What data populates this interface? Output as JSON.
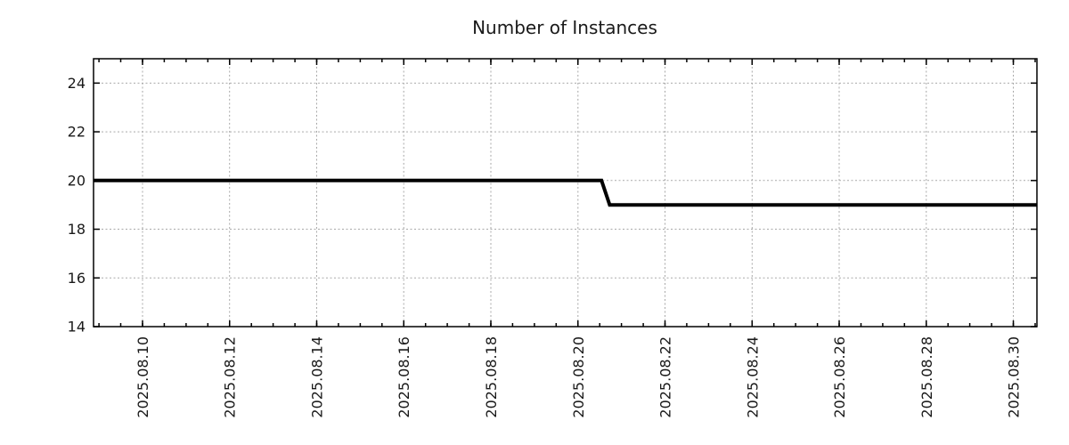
{
  "chart_data": {
    "type": "line",
    "title": "Number of Instances",
    "background_color": "#ffffff",
    "grid": {
      "style": "dotted",
      "color": "#a9a9a9",
      "enabled": true
    },
    "legend": "none",
    "x_axis": {
      "type": "datetime",
      "range": [
        "2025-08-08T21:00:00",
        "2025-08-30T13:00:00"
      ],
      "minor_tick_interval_days": 0.5,
      "tick_label_rotation_deg": 90,
      "major_ticks": [
        {
          "label": "2025.08.10",
          "value": "2025-08-10T00:00:00"
        },
        {
          "label": "2025.08.12",
          "value": "2025-08-12T00:00:00"
        },
        {
          "label": "2025.08.14",
          "value": "2025-08-14T00:00:00"
        },
        {
          "label": "2025.08.16",
          "value": "2025-08-16T00:00:00"
        },
        {
          "label": "2025.08.18",
          "value": "2025-08-18T00:00:00"
        },
        {
          "label": "2025.08.20",
          "value": "2025-08-20T00:00:00"
        },
        {
          "label": "2025.08.22",
          "value": "2025-08-22T00:00:00"
        },
        {
          "label": "2025.08.24",
          "value": "2025-08-24T00:00:00"
        },
        {
          "label": "2025.08.26",
          "value": "2025-08-26T00:00:00"
        },
        {
          "label": "2025.08.28",
          "value": "2025-08-28T00:00:00"
        },
        {
          "label": "2025.08.30",
          "value": "2025-08-30T00:00:00"
        }
      ]
    },
    "y_axis": {
      "range": [
        14,
        25
      ],
      "major_ticks": [
        {
          "label": "14",
          "value": 14
        },
        {
          "label": "16",
          "value": 16
        },
        {
          "label": "18",
          "value": 18
        },
        {
          "label": "20",
          "value": 20
        },
        {
          "label": "22",
          "value": 22
        },
        {
          "label": "24",
          "value": 24
        }
      ]
    },
    "series": [
      {
        "name": "instances",
        "color": "#000000",
        "line_width": 4,
        "points": [
          {
            "x": "2025-08-08T21:00:00",
            "y": 20
          },
          {
            "x": "2025-08-20T13:00:00",
            "y": 20
          },
          {
            "x": "2025-08-20T17:30:00",
            "y": 19
          },
          {
            "x": "2025-08-30T13:00:00",
            "y": 19
          }
        ]
      }
    ]
  }
}
